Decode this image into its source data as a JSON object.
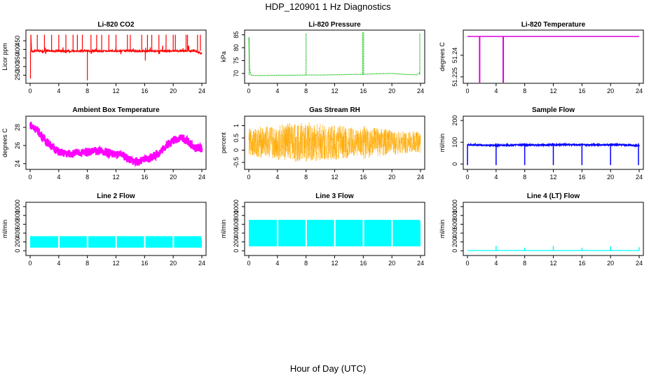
{
  "figure": {
    "title": "HDP_120901  1 Hz Diagnostics",
    "xlabel": "Hour of Day (UTC)"
  },
  "chart_data": [
    {
      "type": "line",
      "title": "Li-820 CO2",
      "xlabel": "",
      "ylabel": "Licor ppm",
      "color": "#ff0000",
      "xlim": [
        0,
        24
      ],
      "ylim": [
        215,
        500
      ],
      "xticks": [
        0,
        4,
        8,
        12,
        16,
        20,
        24
      ],
      "yticks": [
        250,
        300,
        350,
        400,
        450
      ],
      "series": [
        {
          "x": [
            0.0,
            0.1,
            0.2,
            0.5,
            1.0,
            1.5,
            2.0,
            2.5,
            3.0,
            3.5,
            4.0,
            4.5,
            5.0,
            6.0,
            7.0,
            8.0,
            9.0,
            10.0,
            11.0,
            12.0,
            13.0,
            14.0,
            15.0,
            16.0,
            17.0,
            18.0,
            19.0,
            20.0,
            21.0,
            22.0,
            23.0,
            24.0
          ],
          "y": [
            230,
            480,
            392,
            390,
            392,
            391,
            390,
            392,
            391,
            390,
            392,
            391,
            390,
            391,
            390,
            392,
            391,
            390,
            391,
            390,
            391,
            392,
            390,
            391,
            390,
            391,
            390,
            392,
            391,
            390,
            392,
            375
          ]
        }
      ]
    },
    {
      "type": "line",
      "title": "Li-820 Pressure",
      "xlabel": "",
      "ylabel": "kPa",
      "color": "#00bb00",
      "xlim": [
        0,
        24
      ],
      "ylim": [
        67,
        86
      ],
      "xticks": [
        0,
        4,
        8,
        12,
        16,
        20,
        24
      ],
      "yticks": [
        70,
        75,
        80,
        85
      ],
      "series": [
        {
          "x": [
            0.0,
            0.1,
            0.3,
            1.0,
            2.0,
            4.0,
            6.0,
            8.0,
            10.0,
            12.0,
            14.0,
            16.0,
            18.0,
            20.0,
            21.0,
            22.0,
            23.5,
            24.0
          ],
          "y": [
            84,
            72,
            69.3,
            69.2,
            69.2,
            69.3,
            69.3,
            69.4,
            69.4,
            69.5,
            69.6,
            69.7,
            69.9,
            70.0,
            69.8,
            69.6,
            69.5,
            70.5
          ]
        }
      ]
    },
    {
      "type": "line",
      "title": "Li-820 Temperature",
      "xlabel": "",
      "ylabel": "degrees C",
      "color": "#dd00dd",
      "xlim": [
        0,
        24
      ],
      "ylim": [
        51.222,
        51.256
      ],
      "xticks": [
        0,
        4,
        8,
        12,
        16,
        20,
        24
      ],
      "yticks": [
        51.225,
        51.24
      ],
      "series": [
        {
          "x": [
            0,
            24
          ],
          "y": [
            51.253,
            51.253
          ]
        }
      ]
    },
    {
      "type": "line",
      "title": "Ambient Box Temperature",
      "xlabel": "",
      "ylabel": "degrees C",
      "color": "#ff00ff",
      "xlim": [
        0,
        24
      ],
      "ylim": [
        23.6,
        29
      ],
      "xticks": [
        0,
        4,
        8,
        12,
        16,
        20,
        24
      ],
      "yticks": [
        24,
        26,
        28
      ],
      "series": [
        {
          "x": [
            0,
            1,
            2,
            3,
            4,
            5,
            6,
            7,
            8,
            9,
            10,
            11,
            12,
            13,
            14,
            15,
            16,
            17,
            18,
            19,
            20,
            21,
            22,
            23,
            24
          ],
          "y": [
            28.3,
            27.7,
            26.7,
            25.9,
            25.3,
            25.1,
            25.1,
            25.2,
            25.3,
            25.4,
            25.4,
            25.2,
            25.0,
            24.9,
            24.4,
            24.2,
            24.4,
            24.7,
            25.2,
            26.0,
            26.6,
            26.9,
            26.5,
            25.7,
            25.7
          ]
        }
      ]
    },
    {
      "type": "line",
      "title": "Gas Stream RH",
      "xlabel": "",
      "ylabel": "percent",
      "color": "#ffaa00",
      "xlim": [
        0,
        24
      ],
      "ylim": [
        -0.7,
        1.3
      ],
      "xticks": [
        0,
        4,
        8,
        12,
        16,
        20,
        24
      ],
      "yticks": [
        -0.5,
        0.0,
        0.5,
        1.0
      ],
      "series": [
        {
          "x": [
            0,
            24
          ],
          "y": [
            0.3,
            0.3
          ]
        }
      ]
    },
    {
      "type": "line",
      "title": "Sample Flow",
      "xlabel": "",
      "ylabel": "ml/min",
      "color": "#0000ff",
      "xlim": [
        0,
        24
      ],
      "ylim": [
        -15,
        210
      ],
      "xticks": [
        0,
        4,
        8,
        12,
        16,
        20,
        24
      ],
      "yticks": [
        0,
        100,
        200
      ],
      "series": [
        {
          "x": [
            0,
            2,
            4,
            6,
            8,
            10,
            12,
            14,
            16,
            18,
            20,
            22,
            24
          ],
          "y": [
            88,
            87,
            86,
            87,
            88,
            87,
            88,
            89,
            88,
            89,
            88,
            88,
            85
          ]
        }
      ]
    },
    {
      "type": "line",
      "title": "Line 2 Flow",
      "xlabel": "",
      "ylabel": "ml/min",
      "color": "#00ffff",
      "xlim": [
        0,
        24
      ],
      "ylim": [
        -60,
        1050
      ],
      "xticks": [
        0,
        4,
        8,
        12,
        16,
        20,
        24
      ],
      "yticks": [
        0,
        200,
        400,
        600,
        800,
        1000
      ],
      "series": [
        {
          "x": [
            0,
            24
          ],
          "y": [
            330,
            330
          ]
        }
      ]
    },
    {
      "type": "line",
      "title": "Line 3 Flow",
      "xlabel": "",
      "ylabel": "ml/min",
      "color": "#00ffff",
      "xlim": [
        0,
        24
      ],
      "ylim": [
        -60,
        1050
      ],
      "xticks": [
        0,
        4,
        8,
        12,
        16,
        20,
        24
      ],
      "yticks": [
        0,
        200,
        400,
        600,
        800,
        1000
      ],
      "series": [
        {
          "x": [
            0,
            24
          ],
          "y": [
            700,
            700
          ]
        }
      ]
    },
    {
      "type": "line",
      "title": "Line 4 (LT) Flow",
      "xlabel": "",
      "ylabel": "ml/min",
      "color": "#00ffff",
      "xlim": [
        0,
        24
      ],
      "ylim": [
        -60,
        1050
      ],
      "xticks": [
        0,
        4,
        8,
        12,
        16,
        20,
        24
      ],
      "yticks": [
        0,
        200,
        400,
        600,
        800,
        1000
      ],
      "series": [
        {
          "x": [
            0,
            24
          ],
          "y": [
            5,
            5
          ]
        }
      ]
    }
  ]
}
